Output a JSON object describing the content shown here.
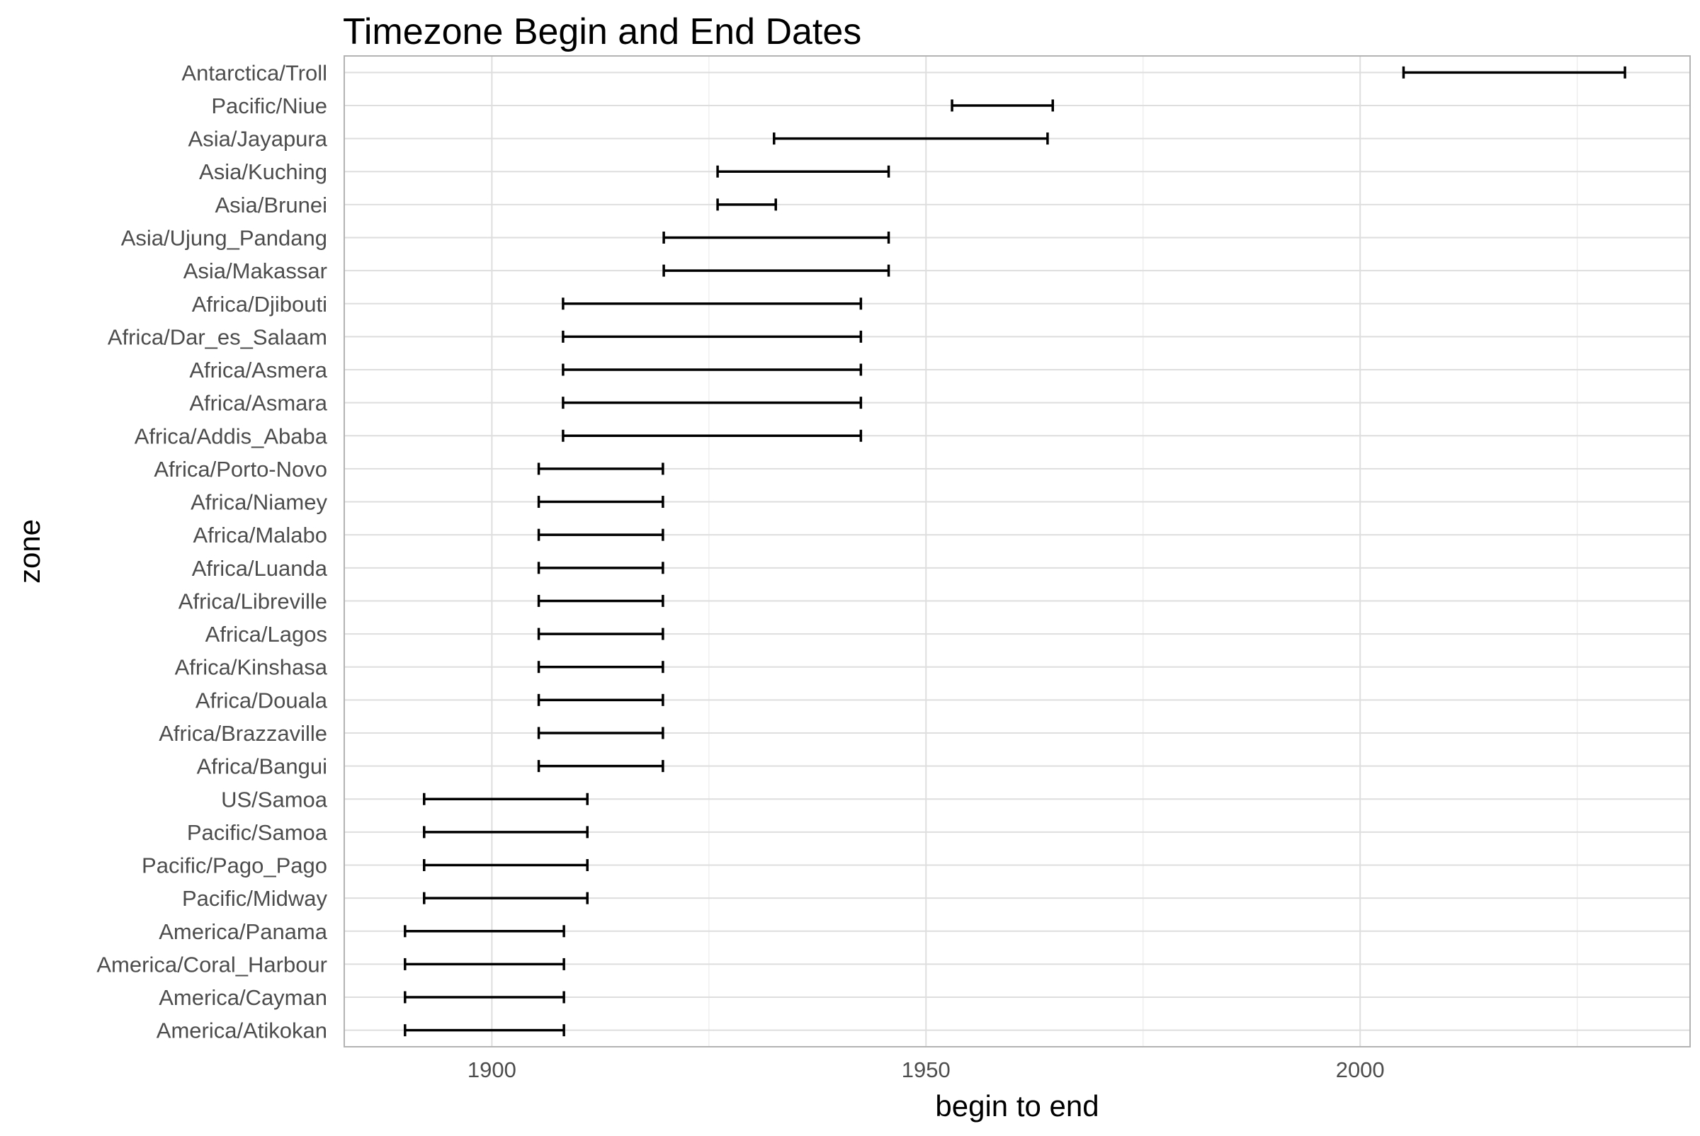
{
  "chart_data": {
    "type": "range",
    "title": "Timezone Begin and End Dates",
    "xlabel": "begin to end",
    "ylabel": "zone",
    "xlim": [
      1883,
      2038
    ],
    "x_ticks": [
      "1900",
      "1950",
      "2000"
    ],
    "x_tick_values": [
      1900,
      1950,
      2000
    ],
    "grid": true,
    "categories": [
      "Antarctica/Troll",
      "Pacific/Niue",
      "Asia/Jayapura",
      "Asia/Kuching",
      "Asia/Brunei",
      "Asia/Ujung_Pandang",
      "Asia/Makassar",
      "Africa/Djibouti",
      "Africa/Dar_es_Salaam",
      "Africa/Asmera",
      "Africa/Asmara",
      "Africa/Addis_Ababa",
      "Africa/Porto-Novo",
      "Africa/Niamey",
      "Africa/Malabo",
      "Africa/Luanda",
      "Africa/Libreville",
      "Africa/Lagos",
      "Africa/Kinshasa",
      "Africa/Douala",
      "Africa/Brazzaville",
      "Africa/Bangui",
      "US/Samoa",
      "Pacific/Samoa",
      "Pacific/Pago_Pago",
      "Pacific/Midway",
      "America/Panama",
      "America/Coral_Harbour",
      "America/Cayman",
      "America/Atikokan"
    ],
    "begin": [
      2005,
      1953,
      1932.5,
      1926,
      1926,
      1919.8,
      1919.8,
      1908.2,
      1908.2,
      1908.2,
      1908.2,
      1908.2,
      1905.4,
      1905.4,
      1905.4,
      1905.4,
      1905.4,
      1905.4,
      1905.4,
      1905.4,
      1905.4,
      1905.4,
      1892.2,
      1892.2,
      1892.2,
      1892.2,
      1890,
      1890,
      1890,
      1890
    ],
    "end": [
      2030.5,
      1964.6,
      1964,
      1945.7,
      1932.7,
      1945.7,
      1945.7,
      1942.5,
      1942.5,
      1942.5,
      1942.5,
      1942.5,
      1919.7,
      1919.7,
      1919.7,
      1919.7,
      1919.7,
      1919.7,
      1919.7,
      1919.7,
      1919.7,
      1919.7,
      1911,
      1911,
      1911,
      1911,
      1908.3,
      1908.3,
      1908.3,
      1908.3
    ]
  }
}
